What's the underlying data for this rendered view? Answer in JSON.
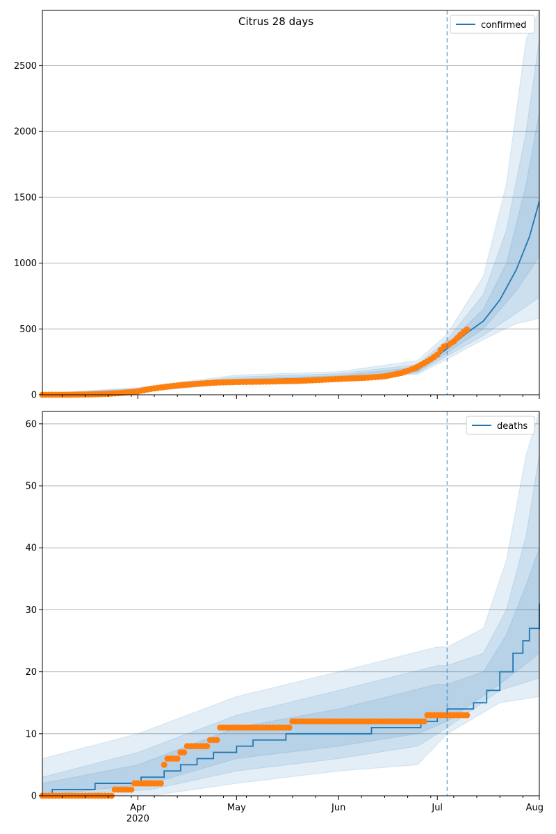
{
  "figure": {
    "title": "Citrus 28 days"
  },
  "colors": {
    "model": "#1f77b4",
    "observed": "#ff7f0e",
    "grid": "#b0b0b0",
    "band": "#1f77b4"
  },
  "chart_data": [
    {
      "type": "line",
      "panel": "top",
      "title": "Citrus 28 days",
      "series_name": "confirmed",
      "legend_label": "confirmed",
      "legend_position": "top-right",
      "x_axis": {
        "type": "date",
        "start": "2020-03-03",
        "end": "2020-08-01",
        "ticks": [
          {
            "date": "2020-04-01",
            "label": "Apr",
            "sublabel": "2020"
          },
          {
            "date": "2020-05-01",
            "label": "May"
          },
          {
            "date": "2020-06-01",
            "label": "Jun"
          },
          {
            "date": "2020-07-01",
            "label": "Jul"
          },
          {
            "date": "2020-08-01",
            "label": "Aug"
          }
        ],
        "show_labels": false
      },
      "ylim": [
        0,
        2920
      ],
      "yticks": [
        0,
        500,
        1000,
        1500,
        2000,
        2500
      ],
      "grid": "horizontal",
      "forecast_start": "2020-07-04",
      "model_line": [
        [
          "2020-03-03",
          0
        ],
        [
          "2020-03-15",
          3
        ],
        [
          "2020-03-22",
          8
        ],
        [
          "2020-03-26",
          18
        ],
        [
          "2020-04-01",
          35
        ],
        [
          "2020-04-08",
          55
        ],
        [
          "2020-04-15",
          75
        ],
        [
          "2020-04-22",
          90
        ],
        [
          "2020-05-01",
          105
        ],
        [
          "2020-05-15",
          120
        ],
        [
          "2020-06-01",
          130
        ],
        [
          "2020-06-15",
          145
        ],
        [
          "2020-06-25",
          190
        ],
        [
          "2020-07-04",
          350
        ],
        [
          "2020-07-10",
          470
        ],
        [
          "2020-07-15",
          560
        ],
        [
          "2020-07-20",
          720
        ],
        [
          "2020-07-25",
          950
        ],
        [
          "2020-07-29",
          1200
        ],
        [
          "2020-08-01",
          1470
        ]
      ],
      "bands": [
        {
          "lower": [
            [
              "2020-03-03",
              0
            ],
            [
              "2020-04-01",
              20
            ],
            [
              "2020-05-01",
              85
            ],
            [
              "2020-06-01",
              110
            ],
            [
              "2020-06-25",
              155
            ],
            [
              "2020-07-04",
              270
            ],
            [
              "2020-07-15",
              420
            ],
            [
              "2020-07-25",
              540
            ],
            [
              "2020-08-01",
              580
            ]
          ],
          "upper": [
            [
              "2020-03-03",
              10
            ],
            [
              "2020-04-01",
              55
            ],
            [
              "2020-05-01",
              150
            ],
            [
              "2020-06-01",
              175
            ],
            [
              "2020-06-25",
              260
            ],
            [
              "2020-07-04",
              460
            ],
            [
              "2020-07-15",
              900
            ],
            [
              "2020-07-22",
              1600
            ],
            [
              "2020-07-28",
              2700
            ],
            [
              "2020-08-01",
              2920
            ]
          ]
        },
        {
          "lower": [
            [
              "2020-03-03",
              0
            ],
            [
              "2020-04-01",
              25
            ],
            [
              "2020-05-01",
              92
            ],
            [
              "2020-06-01",
              118
            ],
            [
              "2020-06-25",
              165
            ],
            [
              "2020-07-04",
              295
            ],
            [
              "2020-07-15",
              450
            ],
            [
              "2020-07-25",
              620
            ],
            [
              "2020-08-01",
              740
            ]
          ],
          "upper": [
            [
              "2020-03-03",
              6
            ],
            [
              "2020-04-01",
              48
            ],
            [
              "2020-05-01",
              135
            ],
            [
              "2020-06-01",
              160
            ],
            [
              "2020-06-25",
              230
            ],
            [
              "2020-07-04",
              420
            ],
            [
              "2020-07-15",
              760
            ],
            [
              "2020-07-22",
              1250
            ],
            [
              "2020-07-28",
              2000
            ],
            [
              "2020-08-01",
              2700
            ]
          ]
        },
        {
          "lower": [
            [
              "2020-03-03",
              0
            ],
            [
              "2020-04-01",
              29
            ],
            [
              "2020-05-01",
              98
            ],
            [
              "2020-06-01",
              124
            ],
            [
              "2020-06-25",
              175
            ],
            [
              "2020-07-04",
              320
            ],
            [
              "2020-07-15",
              500
            ],
            [
              "2020-07-25",
              790
            ],
            [
              "2020-08-01",
              1050
            ]
          ],
          "upper": [
            [
              "2020-03-03",
              4
            ],
            [
              "2020-04-01",
              42
            ],
            [
              "2020-05-01",
              120
            ],
            [
              "2020-06-01",
              145
            ],
            [
              "2020-06-25",
              210
            ],
            [
              "2020-07-04",
              385
            ],
            [
              "2020-07-15",
              650
            ],
            [
              "2020-07-22",
              1000
            ],
            [
              "2020-07-28",
              1600
            ],
            [
              "2020-08-01",
              2150
            ]
          ]
        }
      ],
      "observed": [
        [
          "2020-03-03",
          0
        ],
        [
          "2020-03-10",
          0
        ],
        [
          "2020-03-17",
          2
        ],
        [
          "2020-03-22",
          6
        ],
        [
          "2020-03-26",
          12
        ],
        [
          "2020-03-31",
          22
        ],
        [
          "2020-04-05",
          45
        ],
        [
          "2020-04-10",
          62
        ],
        [
          "2020-04-15",
          75
        ],
        [
          "2020-04-20",
          85
        ],
        [
          "2020-04-25",
          93
        ],
        [
          "2020-05-01",
          97
        ],
        [
          "2020-05-10",
          100
        ],
        [
          "2020-05-20",
          105
        ],
        [
          "2020-06-01",
          120
        ],
        [
          "2020-06-10",
          130
        ],
        [
          "2020-06-15",
          140
        ],
        [
          "2020-06-20",
          165
        ],
        [
          "2020-06-24",
          200
        ],
        [
          "2020-06-27",
          240
        ],
        [
          "2020-06-29",
          270
        ],
        [
          "2020-07-01",
          305
        ],
        [
          "2020-07-02",
          340
        ],
        [
          "2020-07-03",
          365
        ],
        [
          "2020-07-04",
          375
        ],
        [
          "2020-07-06",
          405
        ],
        [
          "2020-07-08",
          455
        ],
        [
          "2020-07-10",
          495
        ]
      ]
    },
    {
      "type": "line",
      "panel": "bottom",
      "series_name": "deaths",
      "legend_label": "deaths",
      "legend_position": "top-right",
      "x_axis": {
        "type": "date",
        "start": "2020-03-03",
        "end": "2020-08-01",
        "ticks": [
          {
            "date": "2020-04-01",
            "label": "Apr",
            "sublabel": "2020"
          },
          {
            "date": "2020-05-01",
            "label": "May"
          },
          {
            "date": "2020-06-01",
            "label": "Jun"
          },
          {
            "date": "2020-07-01",
            "label": "Jul"
          },
          {
            "date": "2020-08-01",
            "label": "Aug"
          }
        ],
        "show_labels": true
      },
      "ylim": [
        0,
        62
      ],
      "yticks": [
        0,
        10,
        20,
        30,
        40,
        50,
        60
      ],
      "grid": "horizontal",
      "forecast_start": "2020-07-04",
      "model_line": [
        [
          "2020-03-03",
          0
        ],
        [
          "2020-03-06",
          1
        ],
        [
          "2020-03-19",
          2
        ],
        [
          "2020-04-02",
          3
        ],
        [
          "2020-04-09",
          4
        ],
        [
          "2020-04-14",
          5
        ],
        [
          "2020-04-19",
          6
        ],
        [
          "2020-04-24",
          7
        ],
        [
          "2020-05-01",
          8
        ],
        [
          "2020-05-06",
          9
        ],
        [
          "2020-05-16",
          10
        ],
        [
          "2020-06-11",
          11
        ],
        [
          "2020-06-26",
          12
        ],
        [
          "2020-07-01",
          13
        ],
        [
          "2020-07-04",
          14
        ],
        [
          "2020-07-08",
          14
        ],
        [
          "2020-07-12",
          15
        ],
        [
          "2020-07-16",
          17
        ],
        [
          "2020-07-20",
          20
        ],
        [
          "2020-07-24",
          23
        ],
        [
          "2020-07-27",
          25
        ],
        [
          "2020-07-29",
          27
        ],
        [
          "2020-08-01",
          31
        ]
      ],
      "bands": [
        {
          "lower": [
            [
              "2020-03-03",
              0
            ],
            [
              "2020-04-05",
              0
            ],
            [
              "2020-05-01",
              2
            ],
            [
              "2020-06-01",
              4
            ],
            [
              "2020-06-25",
              5
            ],
            [
              "2020-07-04",
              10
            ],
            [
              "2020-07-20",
              15
            ],
            [
              "2020-08-01",
              16
            ]
          ],
          "upper": [
            [
              "2020-03-03",
              6
            ],
            [
              "2020-04-01",
              10
            ],
            [
              "2020-05-01",
              16
            ],
            [
              "2020-06-01",
              20
            ],
            [
              "2020-07-01",
              24
            ],
            [
              "2020-07-04",
              24
            ],
            [
              "2020-07-15",
              27
            ],
            [
              "2020-07-22",
              38
            ],
            [
              "2020-07-28",
              55
            ],
            [
              "2020-08-01",
              62
            ]
          ]
        },
        {
          "lower": [
            [
              "2020-03-03",
              0
            ],
            [
              "2020-04-05",
              1
            ],
            [
              "2020-05-01",
              4
            ],
            [
              "2020-06-01",
              6
            ],
            [
              "2020-06-25",
              8
            ],
            [
              "2020-07-04",
              11
            ],
            [
              "2020-07-20",
              17
            ],
            [
              "2020-08-01",
              19
            ]
          ],
          "upper": [
            [
              "2020-03-03",
              3
            ],
            [
              "2020-04-01",
              7
            ],
            [
              "2020-05-01",
              13
            ],
            [
              "2020-06-01",
              17
            ],
            [
              "2020-07-01",
              21
            ],
            [
              "2020-07-04",
              21
            ],
            [
              "2020-07-15",
              23
            ],
            [
              "2020-07-22",
              30
            ],
            [
              "2020-07-28",
              42
            ],
            [
              "2020-08-01",
              55
            ]
          ]
        },
        {
          "lower": [
            [
              "2020-03-03",
              0
            ],
            [
              "2020-04-05",
              2
            ],
            [
              "2020-05-01",
              6
            ],
            [
              "2020-06-01",
              8
            ],
            [
              "2020-06-25",
              10
            ],
            [
              "2020-07-04",
              12
            ],
            [
              "2020-07-20",
              18
            ],
            [
              "2020-08-01",
              23
            ]
          ],
          "upper": [
            [
              "2020-03-03",
              2
            ],
            [
              "2020-04-01",
              5
            ],
            [
              "2020-05-01",
              11
            ],
            [
              "2020-06-01",
              14
            ],
            [
              "2020-07-01",
              18
            ],
            [
              "2020-07-04",
              18
            ],
            [
              "2020-07-15",
              20
            ],
            [
              "2020-07-22",
              26
            ],
            [
              "2020-07-28",
              34
            ],
            [
              "2020-08-01",
              40
            ]
          ]
        }
      ],
      "observed_steps": [
        [
          "2020-03-03",
          0
        ],
        [
          "2020-03-25",
          1
        ],
        [
          "2020-03-31",
          2
        ],
        [
          "2020-04-09",
          5
        ],
        [
          "2020-04-10",
          6
        ],
        [
          "2020-04-14",
          7
        ],
        [
          "2020-04-16",
          8
        ],
        [
          "2020-04-23",
          9
        ],
        [
          "2020-04-26",
          11
        ],
        [
          "2020-05-18",
          12
        ],
        [
          "2020-06-28",
          13
        ],
        [
          "2020-07-10",
          13
        ]
      ]
    }
  ]
}
